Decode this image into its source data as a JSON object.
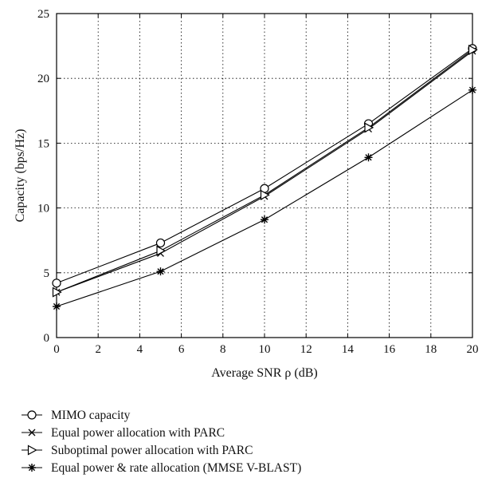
{
  "chart_data": {
    "type": "line",
    "xlabel": "Average SNR ρ (dB)",
    "ylabel": "Capacity (bps/Hz)",
    "xlim": [
      0,
      20
    ],
    "ylim": [
      0,
      25
    ],
    "xticks": [
      "0",
      "2",
      "4",
      "6",
      "8",
      "10",
      "12",
      "14",
      "16",
      "18",
      "20"
    ],
    "yticks": [
      "0",
      "5",
      "10",
      "15",
      "20",
      "25"
    ],
    "grid": true,
    "legend_position": "below-plot",
    "x": [
      0,
      5,
      10,
      15,
      20
    ],
    "series": [
      {
        "name": "MIMO capacity",
        "marker": "circle",
        "color": "#000000",
        "values": [
          4.2,
          7.3,
          11.5,
          16.5,
          22.3
        ]
      },
      {
        "name": "Equal power allocation with PARC",
        "marker": "x",
        "color": "#000000",
        "values": [
          3.5,
          6.5,
          10.9,
          16.1,
          22.1
        ]
      },
      {
        "name": "Suboptimal power allocation with PARC",
        "marker": "triangle-right",
        "color": "#000000",
        "values": [
          3.5,
          6.7,
          11.0,
          16.2,
          22.2
        ]
      },
      {
        "name": "Equal power & rate allocation (MMSE V-BLAST)",
        "marker": "asterisk",
        "color": "#000000",
        "values": [
          2.4,
          5.1,
          9.1,
          13.9,
          19.1
        ]
      }
    ]
  }
}
